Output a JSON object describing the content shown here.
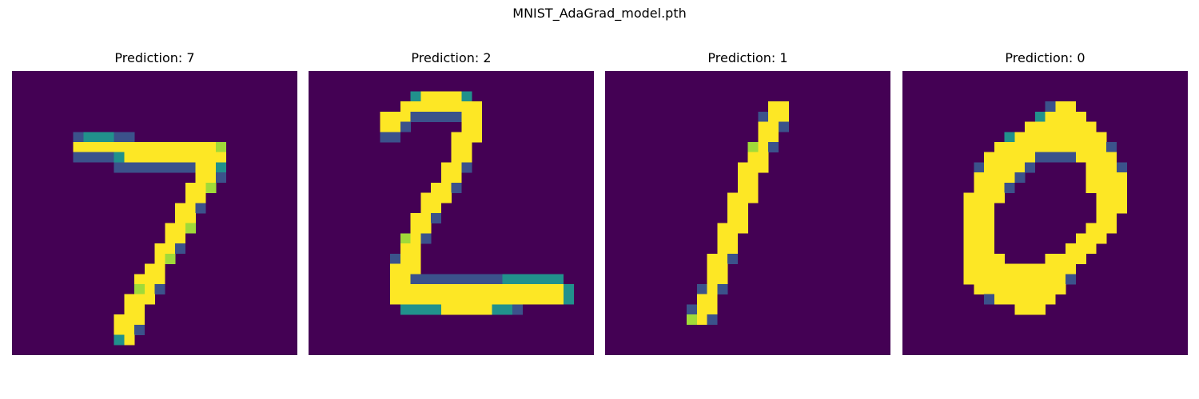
{
  "figure": {
    "title": "MNIST_AdaGrad_model.pth"
  },
  "colormap": {
    "name": "viridis",
    "background": "#440154"
  },
  "panels": [
    {
      "title": "Prediction: 7",
      "digit": "7",
      "pixels": [
        "............................",
        "............................",
        "............................",
        "............................",
        "............................",
        "............................",
        "......BCCCBB................",
        "......ZZZZZZZZZZZZZZY.......",
        "......BBBBCZZZZZZZZZZ.......",
        "..........BBBBBBBBZZC.......",
        "..................ZZB.......",
        ".................ZZY........",
        ".................ZZ.........",
        "................ZZB.........",
        "................ZZ..........",
        "...............ZZY..........",
        "...............ZZ...........",
        "..............ZZB...........",
        "..............ZY............",
        ".............ZZ.............",
        "............ZZZ.............",
        "............YZB.............",
        "...........ZZZ..............",
        "...........ZZ...............",
        "..........ZZZ...............",
        "..........ZZB...............",
        "..........CZ................",
        "............................"
      ]
    },
    {
      "title": "Prediction: 2",
      "digit": "2",
      "pixels": [
        "............................",
        "............................",
        "..........CZZZZC............",
        ".........ZZZZZZZZ...........",
        ".......ZZZBBBBBZZ...........",
        ".......ZZB.....ZZ...........",
        ".......BB.....ZZZ...........",
        "..............ZZ............",
        "..............ZZ............",
        ".............ZZB............",
        ".............ZZ.............",
        "............ZZB.............",
        "...........ZZZ..............",
        "...........ZZ...............",
        "..........ZZB...............",
        "..........ZZ................",
        ".........YZB................",
        ".........ZZ.................",
        "........BZZ.................",
        "........ZZZ.................",
        "........ZZBBBBBBBBBCCCCCC...",
        "........ZZZZZZZZZZZZZZZZZC..",
        "........ZZZZZZZZZZZZZZZZZC..",
        ".........CCCCZZZZZCCB.......",
        "............................",
        "............................",
        "............................",
        "............................"
      ]
    },
    {
      "title": "Prediction: 1",
      "digit": "1",
      "pixels": [
        "............................",
        "............................",
        "............................",
        "................ZZ..........",
        "...............BZZ..........",
        "...............ZZB..........",
        "...............ZZ...........",
        "..............YZB...........",
        "..............ZZ............",
        ".............ZZZ............",
        ".............ZZ.............",
        ".............ZZ.............",
        "............ZZZ.............",
        "............ZZ..............",
        "............ZZ..............",
        "...........ZZZ..............",
        "...........ZZ...............",
        "...........ZZ...............",
        "..........ZZB...............",
        "..........ZZ................",
        "..........ZZ................",
        ".........BZB................",
        ".........ZZ.................",
        "........BZZ.................",
        "........YZB.................",
        "............................",
        "............................",
        "............................"
      ]
    },
    {
      "title": "Prediction: 0",
      "digit": "0",
      "pixels": [
        "............................",
        "............................",
        "............................",
        "..............BZZ...........",
        ".............CZZZZ..........",
        "............ZZZZZZZ.........",
        "..........CZZZZZZZZZ........",
        ".........ZZZZZZZZZZZB.......",
        "........ZZZZZBBBBZZZZ.......",
        ".......BZZZZB.....ZZZB......",
        ".......ZZZZB......ZZZZ......",
        ".......ZZZB.......ZZZZ......",
        "......ZZZZ.........ZZZ......",
        "......ZZZ..........ZZZ......",
        "......ZZZ..........ZZ.......",
        "......ZZZ.........ZZZ.......",
        "......ZZZ........ZZZ........",
        "......ZZZ.......ZZZ.........",
        "......ZZZZ....ZZZZ..........",
        "......ZZZZZZZZZZZ...........",
        "......ZZZZZZZZZZB...........",
        ".......ZZZZZZZZZ............",
        "........BZZZZZZ.............",
        "...........ZZZ..............",
        "............................",
        "............................",
        "............................",
        "............................"
      ]
    }
  ]
}
